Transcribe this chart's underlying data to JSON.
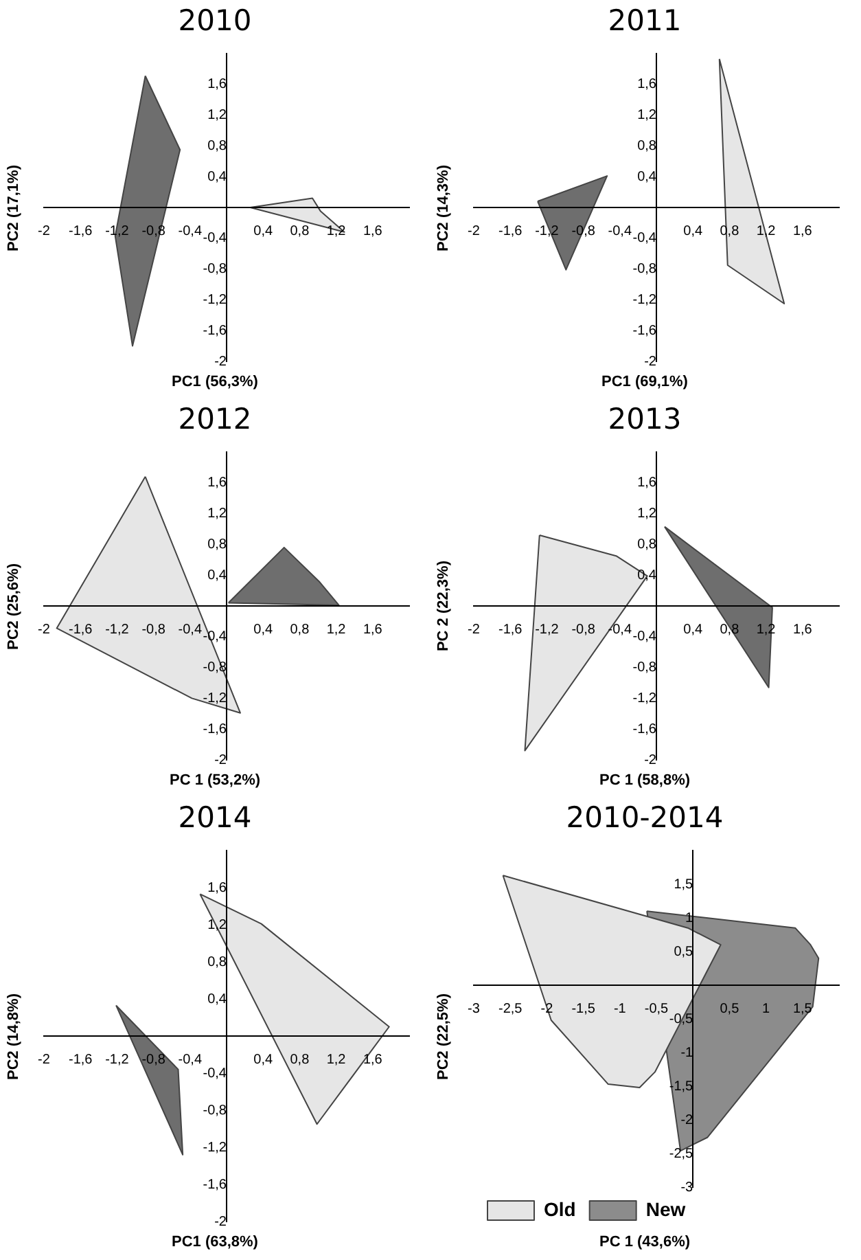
{
  "chart_data": [
    {
      "type": "area",
      "title": "2010",
      "xlabel": "PC1 (56,3%)",
      "ylabel": "PC2 (17,1%)",
      "xlim": [
        -2,
        2
      ],
      "ylim": [
        -2,
        2
      ],
      "xticks": [
        {
          "value": -2,
          "label": "-2"
        },
        {
          "value": -1.6,
          "label": "-1,6"
        },
        {
          "value": -1.2,
          "label": "-1,2"
        },
        {
          "value": -0.8,
          "label": "-0,8"
        },
        {
          "value": -0.4,
          "label": "-0,4"
        },
        {
          "value": 0.4,
          "label": "0,4"
        },
        {
          "value": 0.8,
          "label": "0,8"
        },
        {
          "value": 1.2,
          "label": "1,2"
        },
        {
          "value": 1.6,
          "label": "1,6"
        }
      ],
      "yticks": [
        {
          "value": -2,
          "label": "-2"
        },
        {
          "value": -1.6,
          "label": "-1,6"
        },
        {
          "value": -1.2,
          "label": "-1,2"
        },
        {
          "value": -0.8,
          "label": "-0,8"
        },
        {
          "value": -0.4,
          "label": "-0,4"
        },
        {
          "value": 0.4,
          "label": "0,4"
        },
        {
          "value": 0.8,
          "label": "0,8"
        },
        {
          "value": 1.2,
          "label": "1,2"
        },
        {
          "value": 1.6,
          "label": "1,6"
        }
      ],
      "series": [
        {
          "color": "#e6e6e6",
          "x": [
            0.26,
            0.94,
            1.03,
            1.29
          ],
          "values": [
            0,
            0.12,
            -0.05,
            -0.32
          ]
        },
        {
          "color": "#6e6e6e",
          "x": [
            -0.89,
            -0.51,
            -1.03,
            -1.22
          ],
          "values": [
            1.71,
            0.75,
            -1.8,
            -0.37
          ]
        }
      ]
    },
    {
      "type": "area",
      "title": "2011",
      "xlabel": "PC1 (69,1%)",
      "ylabel": "PC2 (14,3%)",
      "xlim": [
        -2,
        2
      ],
      "ylim": [
        -2,
        2
      ],
      "xticks": [
        {
          "value": -2,
          "label": "-2"
        },
        {
          "value": -1.6,
          "label": "-1,6"
        },
        {
          "value": -1.2,
          "label": "-1,2"
        },
        {
          "value": -0.8,
          "label": "-0,8"
        },
        {
          "value": -0.4,
          "label": "-0,4"
        },
        {
          "value": 0.4,
          "label": "0,4"
        },
        {
          "value": 0.8,
          "label": "0,8"
        },
        {
          "value": 1.2,
          "label": "1,2"
        },
        {
          "value": 1.6,
          "label": "1,6"
        }
      ],
      "yticks": [
        {
          "value": -2,
          "label": "-2"
        },
        {
          "value": -1.6,
          "label": "-1,6"
        },
        {
          "value": -1.2,
          "label": "-1,2"
        },
        {
          "value": -0.8,
          "label": "-0,8"
        },
        {
          "value": -0.4,
          "label": "-0,4"
        },
        {
          "value": 0.4,
          "label": "0,4"
        },
        {
          "value": 0.8,
          "label": "0,8"
        },
        {
          "value": 1.2,
          "label": "1,2"
        },
        {
          "value": 1.6,
          "label": "1,6"
        }
      ],
      "series": [
        {
          "color": "#e6e6e6",
          "x": [
            0.69,
            1.4,
            0.78
          ],
          "values": [
            1.93,
            -1.25,
            -0.75
          ]
        },
        {
          "color": "#6e6e6e",
          "x": [
            -1.3,
            -0.54,
            -0.99
          ],
          "values": [
            0.08,
            0.41,
            -0.81
          ]
        }
      ]
    },
    {
      "type": "area",
      "title": "2012",
      "xlabel": "PC 1 (53,2%)",
      "ylabel": "PC2 (25,6%)",
      "xlim": [
        -2,
        2
      ],
      "ylim": [
        -2,
        2
      ],
      "xticks": [
        {
          "value": -2,
          "label": "-2"
        },
        {
          "value": -1.6,
          "label": "-1,6"
        },
        {
          "value": -1.2,
          "label": "-1,2"
        },
        {
          "value": -0.8,
          "label": "-0,8"
        },
        {
          "value": -0.4,
          "label": "-0,4"
        },
        {
          "value": 0.4,
          "label": "0,4"
        },
        {
          "value": 0.8,
          "label": "0,8"
        },
        {
          "value": 1.2,
          "label": "1,2"
        },
        {
          "value": 1.6,
          "label": "1,6"
        }
      ],
      "yticks": [
        {
          "value": -2,
          "label": "-2"
        },
        {
          "value": -1.6,
          "label": "-1,6"
        },
        {
          "value": -1.2,
          "label": "-1,2"
        },
        {
          "value": -0.8,
          "label": "-0,8"
        },
        {
          "value": -0.4,
          "label": "-0,4"
        },
        {
          "value": 0.4,
          "label": "0,4"
        },
        {
          "value": 0.8,
          "label": "0,8"
        },
        {
          "value": 1.2,
          "label": "1,2"
        },
        {
          "value": 1.6,
          "label": "1,6"
        }
      ],
      "series": [
        {
          "color": "#e6e6e6",
          "x": [
            -0.89,
            -1.86,
            -0.38,
            0.15
          ],
          "values": [
            1.68,
            -0.29,
            -1.2,
            -1.39
          ]
        },
        {
          "color": "#6e6e6e",
          "x": [
            0.02,
            0.63,
            1.02,
            1.23
          ],
          "values": [
            0.04,
            0.76,
            0.31,
            0.01
          ]
        }
      ]
    },
    {
      "type": "area",
      "title": "2013",
      "xlabel": "PC 1 (58,8%)",
      "ylabel": "PC 2 (22,3%)",
      "xlim": [
        -2,
        2
      ],
      "ylim": [
        -2,
        2
      ],
      "xticks": [
        {
          "value": -2,
          "label": "-2"
        },
        {
          "value": -1.6,
          "label": "-1,6"
        },
        {
          "value": -1.2,
          "label": "-1,2"
        },
        {
          "value": -0.8,
          "label": "-0,8"
        },
        {
          "value": -0.4,
          "label": "-0,4"
        },
        {
          "value": 0.4,
          "label": "0,4"
        },
        {
          "value": 0.8,
          "label": "0,8"
        },
        {
          "value": 1.2,
          "label": "1,2"
        },
        {
          "value": 1.6,
          "label": "1,6"
        }
      ],
      "yticks": [
        {
          "value": -2,
          "label": "-2"
        },
        {
          "value": -1.6,
          "label": "-1,6"
        },
        {
          "value": -1.2,
          "label": "-1,2"
        },
        {
          "value": -0.8,
          "label": "-0,8"
        },
        {
          "value": -0.4,
          "label": "-0,4"
        },
        {
          "value": 0.4,
          "label": "0,4"
        },
        {
          "value": 0.8,
          "label": "0,8"
        },
        {
          "value": 1.2,
          "label": "1,2"
        },
        {
          "value": 1.6,
          "label": "1,6"
        }
      ],
      "series": [
        {
          "color": "#e6e6e6",
          "x": [
            -1.28,
            -0.44,
            -0.1,
            -1.44
          ],
          "values": [
            0.92,
            0.65,
            0.39,
            -1.88
          ]
        },
        {
          "color": "#6e6e6e",
          "x": [
            0.09,
            1.27,
            1.23
          ],
          "values": [
            1.03,
            -0.02,
            -1.06
          ]
        }
      ]
    },
    {
      "type": "area",
      "title": "2014",
      "xlabel": "PC1 (63,8%)",
      "ylabel": "PC2 (14,8%)",
      "xlim": [
        -2,
        2
      ],
      "ylim": [
        -2,
        2
      ],
      "xticks": [
        {
          "value": -2,
          "label": "-2"
        },
        {
          "value": -1.6,
          "label": "-1,6"
        },
        {
          "value": -1.2,
          "label": "-1,2"
        },
        {
          "value": -0.8,
          "label": "-0,8"
        },
        {
          "value": -0.4,
          "label": "-0,4"
        },
        {
          "value": 0.4,
          "label": "0,4"
        },
        {
          "value": 0.8,
          "label": "0,8"
        },
        {
          "value": 1.2,
          "label": "1,2"
        },
        {
          "value": 1.6,
          "label": "1,6"
        }
      ],
      "yticks": [
        {
          "value": -2,
          "label": "-2"
        },
        {
          "value": -1.6,
          "label": "-1,6"
        },
        {
          "value": -1.2,
          "label": "-1,2"
        },
        {
          "value": -0.8,
          "label": "-0,8"
        },
        {
          "value": -0.4,
          "label": "-0,4"
        },
        {
          "value": 0.4,
          "label": "0,4"
        },
        {
          "value": 0.8,
          "label": "0,8"
        },
        {
          "value": 1.2,
          "label": "1,2"
        },
        {
          "value": 1.6,
          "label": "1,6"
        }
      ],
      "series": [
        {
          "color": "#e6e6e6",
          "x": [
            -0.29,
            0.38,
            1.78,
            0.99
          ],
          "values": [
            1.53,
            1.21,
            0.1,
            -0.95
          ]
        },
        {
          "color": "#6e6e6e",
          "x": [
            -1.21,
            -0.53,
            -0.48
          ],
          "values": [
            0.33,
            -0.36,
            -1.28
          ]
        }
      ]
    },
    {
      "type": "area",
      "title": "2010-2014",
      "xlabel": "PC 1 (43,6%)",
      "ylabel": "PC2 (22,5%)",
      "xlim": [
        -3,
        2
      ],
      "ylim": [
        -3,
        2
      ],
      "legend": "bottom left",
      "xticks": [
        {
          "value": -3,
          "label": "-3"
        },
        {
          "value": -2.5,
          "label": "-2,5"
        },
        {
          "value": -2,
          "label": "-2"
        },
        {
          "value": -1.5,
          "label": "-1,5"
        },
        {
          "value": -1,
          "label": "-1"
        },
        {
          "value": -0.5,
          "label": "-0,5"
        },
        {
          "value": 0.5,
          "label": "0,5"
        },
        {
          "value": 1,
          "label": "1"
        },
        {
          "value": 1.5,
          "label": "1,5"
        }
      ],
      "yticks": [
        {
          "value": -3,
          "label": "-3"
        },
        {
          "value": -2.5,
          "label": "-2,5"
        },
        {
          "value": -2,
          "label": "-2"
        },
        {
          "value": -1.5,
          "label": "-1,5"
        },
        {
          "value": -1,
          "label": "-1"
        },
        {
          "value": -0.5,
          "label": "-0,5"
        },
        {
          "value": 0.5,
          "label": "0,5"
        },
        {
          "value": 1,
          "label": "1"
        },
        {
          "value": 1.5,
          "label": "1,5"
        }
      ],
      "series": [
        {
          "name": "Old",
          "color": "#e6e6e6",
          "x": [
            -2.6,
            -0.07,
            0.38,
            -0.52,
            -0.73,
            -1.16,
            -1.94
          ],
          "values": [
            1.63,
            0.85,
            0.6,
            -1.29,
            -1.52,
            -1.47,
            -0.52
          ]
        },
        {
          "name": "New",
          "color": "#8c8c8c",
          "x": [
            -0.63,
            1.4,
            1.61,
            1.72,
            1.64,
            0.2,
            -0.17
          ],
          "values": [
            1.1,
            0.85,
            0.6,
            0.4,
            -0.32,
            -2.26,
            -2.46
          ]
        }
      ]
    }
  ]
}
